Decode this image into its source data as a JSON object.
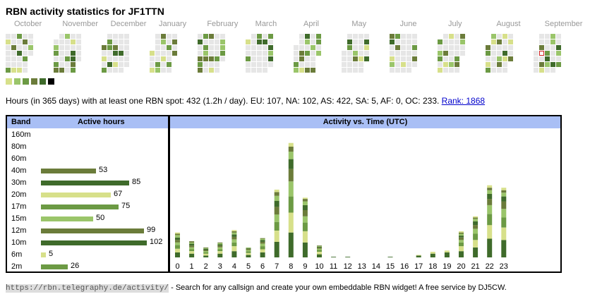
{
  "page": {
    "title": "RBN activity statistics for JF1TTN",
    "months": [
      "October",
      "November",
      "December",
      "January",
      "February",
      "March",
      "April",
      "May",
      "June",
      "July",
      "August",
      "September"
    ],
    "summary_text": "Hours (in 365 days) with at least one RBN spot: 432 (1.2h / day). EU: 107, NA: 102, AS: 422, SA: 5, AF: 0, OC: 233.",
    "rank_link": "Rank: 1868",
    "footer_link": "https://rbn.telegraphy.de/activity/",
    "footer_text": "- Search for any callsign and create your own embeddable RBN widget! A free service by DJ5CW."
  },
  "colors": {
    "empty": "#e6e6e6",
    "level1": "#d7e08a",
    "level2": "#9ac56a",
    "level3": "#6c9a44",
    "level4": "#6b7c3a",
    "level5": "#3f6b2b",
    "level6": "#000000",
    "header_bg": "#a9bff5",
    "today_border": "#d02020"
  },
  "legend_levels": [
    "level1",
    "level2",
    "level3",
    "level4",
    "level5",
    "level6"
  ],
  "band_table": {
    "col_band": "Band",
    "col_hours": "Active hours",
    "max_hours": 102,
    "bands": [
      {
        "name": "160m",
        "hours": null,
        "color": ""
      },
      {
        "name": "80m",
        "hours": null,
        "color": ""
      },
      {
        "name": "60m",
        "hours": null,
        "color": ""
      },
      {
        "name": "40m",
        "hours": 53,
        "color": "#6b7c3a"
      },
      {
        "name": "30m",
        "hours": 85,
        "color": "#3f6b2b"
      },
      {
        "name": "20m",
        "hours": 67,
        "color": "#d7e08a"
      },
      {
        "name": "17m",
        "hours": 75,
        "color": "#6c9a44"
      },
      {
        "name": "15m",
        "hours": 50,
        "color": "#9ac56a"
      },
      {
        "name": "12m",
        "hours": 99,
        "color": "#6b7c3a"
      },
      {
        "name": "10m",
        "hours": 102,
        "color": "#3f6b2b"
      },
      {
        "name": "6m",
        "hours": 5,
        "color": "#d7e08a"
      },
      {
        "name": "2m",
        "hours": 26,
        "color": "#6c9a44"
      }
    ]
  },
  "chart_data": {
    "type": "bar",
    "title": "Activity vs. Time (UTC)",
    "categories": [
      "0",
      "1",
      "2",
      "3",
      "4",
      "5",
      "6",
      "7",
      "8",
      "9",
      "10",
      "11",
      "12",
      "13",
      "14",
      "15",
      "16",
      "17",
      "18",
      "19",
      "20",
      "21",
      "22",
      "23"
    ],
    "stack_colors": [
      "#3f6b2b",
      "#d7e08a",
      "#6c9a44",
      "#9ac56a",
      "#6b7c3a",
      "#3f6b2b",
      "#9ac56a",
      "#6b7c3a",
      "#d7e08a"
    ],
    "values": [
      [
        8,
        6,
        6,
        4,
        4,
        4,
        4,
        2,
        2
      ],
      [
        6,
        4,
        3,
        3,
        3,
        3,
        2,
        2,
        0
      ],
      [
        3,
        3,
        2,
        2,
        2,
        2,
        1,
        1,
        0
      ],
      [
        6,
        4,
        3,
        3,
        3,
        2,
        2,
        1,
        0
      ],
      [
        10,
        8,
        6,
        5,
        4,
        4,
        3,
        2,
        2
      ],
      [
        4,
        3,
        3,
        2,
        2,
        1,
        1,
        0,
        0
      ],
      [
        8,
        5,
        5,
        4,
        3,
        3,
        2,
        1,
        0
      ],
      [
        25,
        18,
        14,
        12,
        12,
        10,
        8,
        6,
        4
      ],
      [
        40,
        32,
        26,
        24,
        20,
        16,
        12,
        8,
        6
      ],
      [
        24,
        18,
        14,
        10,
        10,
        8,
        6,
        4,
        2
      ],
      [
        5,
        4,
        3,
        2,
        2,
        1,
        1,
        1,
        0
      ],
      [
        1,
        0,
        0,
        0,
        0,
        0,
        0,
        0,
        0
      ],
      [
        1,
        0,
        0,
        0,
        0,
        0,
        0,
        0,
        0
      ],
      [
        0,
        0,
        0,
        0,
        0,
        0,
        0,
        0,
        0
      ],
      [
        0,
        0,
        0,
        0,
        0,
        0,
        0,
        0,
        0
      ],
      [
        1,
        0,
        0,
        0,
        0,
        0,
        0,
        0,
        0
      ],
      [
        0,
        0,
        0,
        0,
        0,
        0,
        0,
        0,
        0
      ],
      [
        3,
        1,
        0,
        0,
        0,
        0,
        0,
        0,
        0
      ],
      [
        6,
        3,
        0,
        0,
        0,
        0,
        0,
        0,
        0
      ],
      [
        8,
        3,
        0,
        0,
        0,
        0,
        0,
        0,
        0
      ],
      [
        10,
        8,
        6,
        4,
        4,
        3,
        3,
        2,
        2
      ],
      [
        16,
        12,
        10,
        8,
        6,
        6,
        4,
        2,
        2
      ],
      [
        30,
        22,
        18,
        14,
        10,
        8,
        6,
        4,
        4
      ],
      [
        28,
        20,
        16,
        14,
        12,
        8,
        6,
        4,
        4
      ]
    ],
    "ylim": [
      0,
      195
    ]
  }
}
